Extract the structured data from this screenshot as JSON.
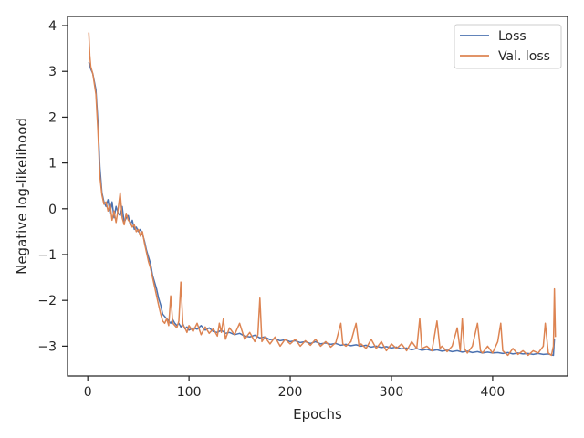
{
  "chart_data": {
    "type": "line",
    "xlabel": "Epochs",
    "ylabel": "Negative log-likelihood",
    "xlim": [
      -20,
      474
    ],
    "ylim": [
      -3.65,
      4.2
    ],
    "xticks": [
      0,
      100,
      200,
      300,
      400
    ],
    "yticks": [
      4,
      3,
      2,
      1,
      0,
      -1,
      -2,
      -3
    ],
    "ytick_labels": [
      "4",
      "3",
      "2",
      "1",
      "0",
      "−1",
      "−2",
      "−3"
    ],
    "legend_position": "top-right",
    "grid": false,
    "series": [
      {
        "name": "Loss",
        "color": "#4c72b0",
        "points": [
          [
            1,
            3.2
          ],
          [
            3,
            3.05
          ],
          [
            5,
            2.95
          ],
          [
            8,
            2.6
          ],
          [
            10,
            1.9
          ],
          [
            12,
            0.9
          ],
          [
            14,
            0.35
          ],
          [
            16,
            0.15
          ],
          [
            18,
            0.05
          ],
          [
            20,
            0.2
          ],
          [
            22,
            -0.1
          ],
          [
            24,
            0.15
          ],
          [
            26,
            -0.2
          ],
          [
            28,
            0.05
          ],
          [
            30,
            -0.1
          ],
          [
            32,
            -0.15
          ],
          [
            34,
            0.05
          ],
          [
            36,
            -0.3
          ],
          [
            38,
            -0.2
          ],
          [
            40,
            -0.15
          ],
          [
            42,
            -0.35
          ],
          [
            44,
            -0.25
          ],
          [
            46,
            -0.45
          ],
          [
            48,
            -0.4
          ],
          [
            50,
            -0.5
          ],
          [
            52,
            -0.45
          ],
          [
            54,
            -0.55
          ],
          [
            56,
            -0.7
          ],
          [
            58,
            -0.9
          ],
          [
            60,
            -1.05
          ],
          [
            62,
            -1.2
          ],
          [
            64,
            -1.45
          ],
          [
            66,
            -1.6
          ],
          [
            68,
            -1.75
          ],
          [
            70,
            -1.95
          ],
          [
            72,
            -2.1
          ],
          [
            74,
            -2.3
          ],
          [
            76,
            -2.35
          ],
          [
            78,
            -2.4
          ],
          [
            80,
            -2.45
          ],
          [
            82,
            -2.5
          ],
          [
            84,
            -2.42
          ],
          [
            86,
            -2.5
          ],
          [
            88,
            -2.55
          ],
          [
            90,
            -2.5
          ],
          [
            92,
            -2.58
          ],
          [
            94,
            -2.52
          ],
          [
            96,
            -2.62
          ],
          [
            98,
            -2.58
          ],
          [
            100,
            -2.65
          ],
          [
            104,
            -2.6
          ],
          [
            108,
            -2.63
          ],
          [
            112,
            -2.55
          ],
          [
            116,
            -2.65
          ],
          [
            120,
            -2.6
          ],
          [
            124,
            -2.68
          ],
          [
            128,
            -2.7
          ],
          [
            132,
            -2.65
          ],
          [
            136,
            -2.72
          ],
          [
            140,
            -2.7
          ],
          [
            145,
            -2.75
          ],
          [
            150,
            -2.72
          ],
          [
            155,
            -2.78
          ],
          [
            160,
            -2.8
          ],
          [
            165,
            -2.76
          ],
          [
            170,
            -2.82
          ],
          [
            175,
            -2.8
          ],
          [
            180,
            -2.86
          ],
          [
            185,
            -2.84
          ],
          [
            190,
            -2.88
          ],
          [
            195,
            -2.86
          ],
          [
            200,
            -2.9
          ],
          [
            205,
            -2.88
          ],
          [
            210,
            -2.92
          ],
          [
            215,
            -2.9
          ],
          [
            220,
            -2.94
          ],
          [
            225,
            -2.9
          ],
          [
            230,
            -2.95
          ],
          [
            235,
            -2.93
          ],
          [
            240,
            -2.96
          ],
          [
            245,
            -2.94
          ],
          [
            250,
            -2.98
          ],
          [
            255,
            -2.96
          ],
          [
            260,
            -2.99
          ],
          [
            265,
            -2.97
          ],
          [
            270,
            -3.0
          ],
          [
            275,
            -2.98
          ],
          [
            280,
            -3.02
          ],
          [
            285,
            -3.0
          ],
          [
            290,
            -3.03
          ],
          [
            295,
            -3.01
          ],
          [
            300,
            -3.04
          ],
          [
            305,
            -3.02
          ],
          [
            310,
            -3.06
          ],
          [
            315,
            -3.04
          ],
          [
            320,
            -3.08
          ],
          [
            325,
            -3.05
          ],
          [
            330,
            -3.09
          ],
          [
            335,
            -3.07
          ],
          [
            340,
            -3.1
          ],
          [
            345,
            -3.08
          ],
          [
            350,
            -3.11
          ],
          [
            355,
            -3.09
          ],
          [
            360,
            -3.12
          ],
          [
            365,
            -3.1
          ],
          [
            370,
            -3.13
          ],
          [
            375,
            -3.11
          ],
          [
            380,
            -3.14
          ],
          [
            385,
            -3.12
          ],
          [
            390,
            -3.15
          ],
          [
            395,
            -3.13
          ],
          [
            400,
            -3.15
          ],
          [
            405,
            -3.14
          ],
          [
            410,
            -3.16
          ],
          [
            415,
            -3.14
          ],
          [
            420,
            -3.17
          ],
          [
            425,
            -3.15
          ],
          [
            430,
            -3.17
          ],
          [
            435,
            -3.16
          ],
          [
            440,
            -3.18
          ],
          [
            445,
            -3.16
          ],
          [
            450,
            -3.18
          ],
          [
            455,
            -3.17
          ],
          [
            458,
            -3.19
          ],
          [
            460,
            -3.2
          ],
          [
            461,
            -2.85
          ]
        ]
      },
      {
        "name": "Val. loss",
        "color": "#dd8452",
        "points": [
          [
            1,
            3.85
          ],
          [
            2,
            3.35
          ],
          [
            3,
            3.1
          ],
          [
            5,
            2.95
          ],
          [
            8,
            2.5
          ],
          [
            10,
            1.7
          ],
          [
            12,
            0.7
          ],
          [
            14,
            0.3
          ],
          [
            16,
            0.1
          ],
          [
            18,
            0.15
          ],
          [
            20,
            -0.05
          ],
          [
            22,
            0.1
          ],
          [
            24,
            -0.25
          ],
          [
            26,
            -0.05
          ],
          [
            28,
            -0.3
          ],
          [
            30,
            0.0
          ],
          [
            32,
            0.35
          ],
          [
            34,
            -0.2
          ],
          [
            36,
            -0.35
          ],
          [
            38,
            -0.1
          ],
          [
            40,
            -0.25
          ],
          [
            42,
            -0.3
          ],
          [
            44,
            -0.4
          ],
          [
            46,
            -0.35
          ],
          [
            48,
            -0.5
          ],
          [
            50,
            -0.45
          ],
          [
            52,
            -0.6
          ],
          [
            54,
            -0.5
          ],
          [
            56,
            -0.75
          ],
          [
            58,
            -0.95
          ],
          [
            60,
            -1.15
          ],
          [
            62,
            -1.3
          ],
          [
            64,
            -1.5
          ],
          [
            66,
            -1.7
          ],
          [
            68,
            -1.9
          ],
          [
            70,
            -2.1
          ],
          [
            72,
            -2.3
          ],
          [
            74,
            -2.45
          ],
          [
            76,
            -2.5
          ],
          [
            78,
            -2.4
          ],
          [
            80,
            -2.55
          ],
          [
            82,
            -1.9
          ],
          [
            84,
            -2.5
          ],
          [
            86,
            -2.55
          ],
          [
            88,
            -2.6
          ],
          [
            90,
            -2.45
          ],
          [
            92,
            -1.6
          ],
          [
            94,
            -2.55
          ],
          [
            96,
            -2.6
          ],
          [
            98,
            -2.7
          ],
          [
            100,
            -2.55
          ],
          [
            104,
            -2.68
          ],
          [
            108,
            -2.5
          ],
          [
            112,
            -2.75
          ],
          [
            116,
            -2.58
          ],
          [
            120,
            -2.72
          ],
          [
            124,
            -2.62
          ],
          [
            128,
            -2.78
          ],
          [
            130,
            -2.5
          ],
          [
            132,
            -2.7
          ],
          [
            134,
            -2.4
          ],
          [
            136,
            -2.85
          ],
          [
            140,
            -2.6
          ],
          [
            145,
            -2.75
          ],
          [
            150,
            -2.5
          ],
          [
            155,
            -2.85
          ],
          [
            160,
            -2.7
          ],
          [
            165,
            -2.9
          ],
          [
            168,
            -2.75
          ],
          [
            170,
            -1.95
          ],
          [
            172,
            -2.9
          ],
          [
            175,
            -2.8
          ],
          [
            180,
            -2.95
          ],
          [
            185,
            -2.8
          ],
          [
            190,
            -3.0
          ],
          [
            195,
            -2.85
          ],
          [
            200,
            -2.95
          ],
          [
            205,
            -2.85
          ],
          [
            210,
            -3.0
          ],
          [
            215,
            -2.88
          ],
          [
            220,
            -2.98
          ],
          [
            225,
            -2.85
          ],
          [
            230,
            -3.0
          ],
          [
            235,
            -2.9
          ],
          [
            240,
            -3.02
          ],
          [
            245,
            -2.92
          ],
          [
            250,
            -2.5
          ],
          [
            252,
            -2.95
          ],
          [
            255,
            -3.0
          ],
          [
            260,
            -2.9
          ],
          [
            265,
            -2.5
          ],
          [
            268,
            -3.0
          ],
          [
            270,
            -2.95
          ],
          [
            275,
            -3.05
          ],
          [
            280,
            -2.85
          ],
          [
            285,
            -3.05
          ],
          [
            290,
            -2.9
          ],
          [
            295,
            -3.1
          ],
          [
            300,
            -2.95
          ],
          [
            305,
            -3.05
          ],
          [
            310,
            -2.95
          ],
          [
            315,
            -3.1
          ],
          [
            320,
            -2.9
          ],
          [
            325,
            -3.05
          ],
          [
            328,
            -2.4
          ],
          [
            330,
            -3.05
          ],
          [
            335,
            -3.0
          ],
          [
            340,
            -3.1
          ],
          [
            345,
            -2.45
          ],
          [
            348,
            -3.05
          ],
          [
            350,
            -3.0
          ],
          [
            355,
            -3.12
          ],
          [
            360,
            -3.0
          ],
          [
            365,
            -2.6
          ],
          [
            368,
            -3.1
          ],
          [
            370,
            -2.4
          ],
          [
            372,
            -3.05
          ],
          [
            375,
            -3.15
          ],
          [
            380,
            -3.0
          ],
          [
            385,
            -2.5
          ],
          [
            388,
            -3.1
          ],
          [
            390,
            -3.15
          ],
          [
            395,
            -3.0
          ],
          [
            400,
            -3.15
          ],
          [
            405,
            -2.9
          ],
          [
            408,
            -2.5
          ],
          [
            410,
            -3.1
          ],
          [
            415,
            -3.2
          ],
          [
            420,
            -3.05
          ],
          [
            425,
            -3.18
          ],
          [
            430,
            -3.1
          ],
          [
            435,
            -3.2
          ],
          [
            440,
            -3.1
          ],
          [
            445,
            -3.15
          ],
          [
            450,
            -3.0
          ],
          [
            452,
            -2.5
          ],
          [
            455,
            -3.15
          ],
          [
            458,
            -3.2
          ],
          [
            460,
            -3.0
          ],
          [
            461,
            -1.75
          ],
          [
            462,
            -2.8
          ]
        ]
      }
    ]
  }
}
